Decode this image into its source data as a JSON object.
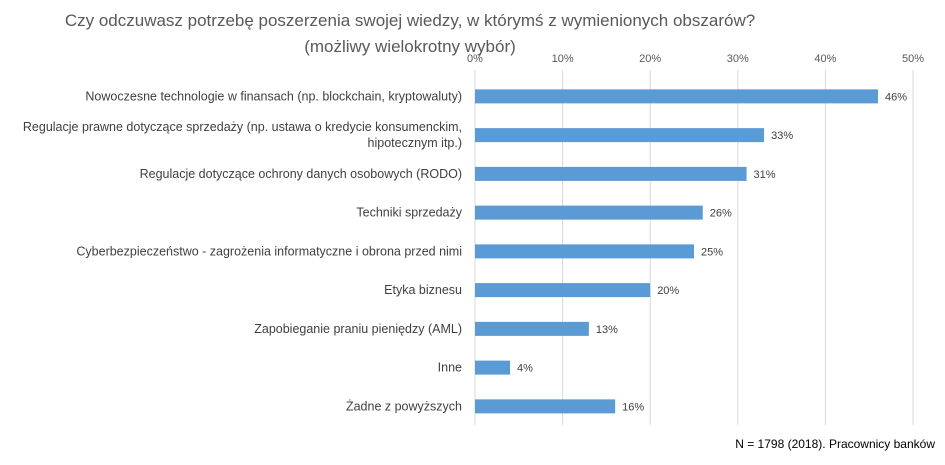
{
  "chart_data": {
    "type": "bar",
    "orientation": "horizontal",
    "title": "Czy odczuwasz potrzebę poszerzenia swojej wiedzy, w którymś z wymienionych obszarów? (możliwy wielokrotny wybór)",
    "categories": [
      [
        "Nowoczesne technologie w finansach (np. blockchain, kryptowaluty)"
      ],
      [
        "Regulacje prawne dotyczące sprzedaży (np. ustawa o kredycie konsumenckim,",
        "hipotecznym itp.)"
      ],
      [
        "Regulacje dotyczące ochrony danych osobowych (RODO)"
      ],
      [
        "Techniki sprzedaży"
      ],
      [
        "Cyberbezpieczeństwo - zagrożenia informatyczne i obrona przed nimi"
      ],
      [
        "Etyka biznesu"
      ],
      [
        "Zapobieganie praniu pieniędzy (AML)"
      ],
      [
        "Inne"
      ],
      [
        "Żadne z powyższych"
      ]
    ],
    "values": [
      46,
      33,
      31,
      26,
      25,
      20,
      13,
      4,
      16
    ],
    "value_labels": [
      "46%",
      "33%",
      "31%",
      "26%",
      "25%",
      "20%",
      "13%",
      "4%",
      "16%"
    ],
    "xlim": [
      0,
      50
    ],
    "x_ticks": [
      "0%",
      "10%",
      "20%",
      "30%",
      "40%",
      "50%"
    ],
    "x_axis_position": "top",
    "grid": true,
    "bar_color": "#5b9bd5",
    "grid_color": "#d9d9d9"
  },
  "footnote": "N = 1798 (2018). Pracownicy banków"
}
